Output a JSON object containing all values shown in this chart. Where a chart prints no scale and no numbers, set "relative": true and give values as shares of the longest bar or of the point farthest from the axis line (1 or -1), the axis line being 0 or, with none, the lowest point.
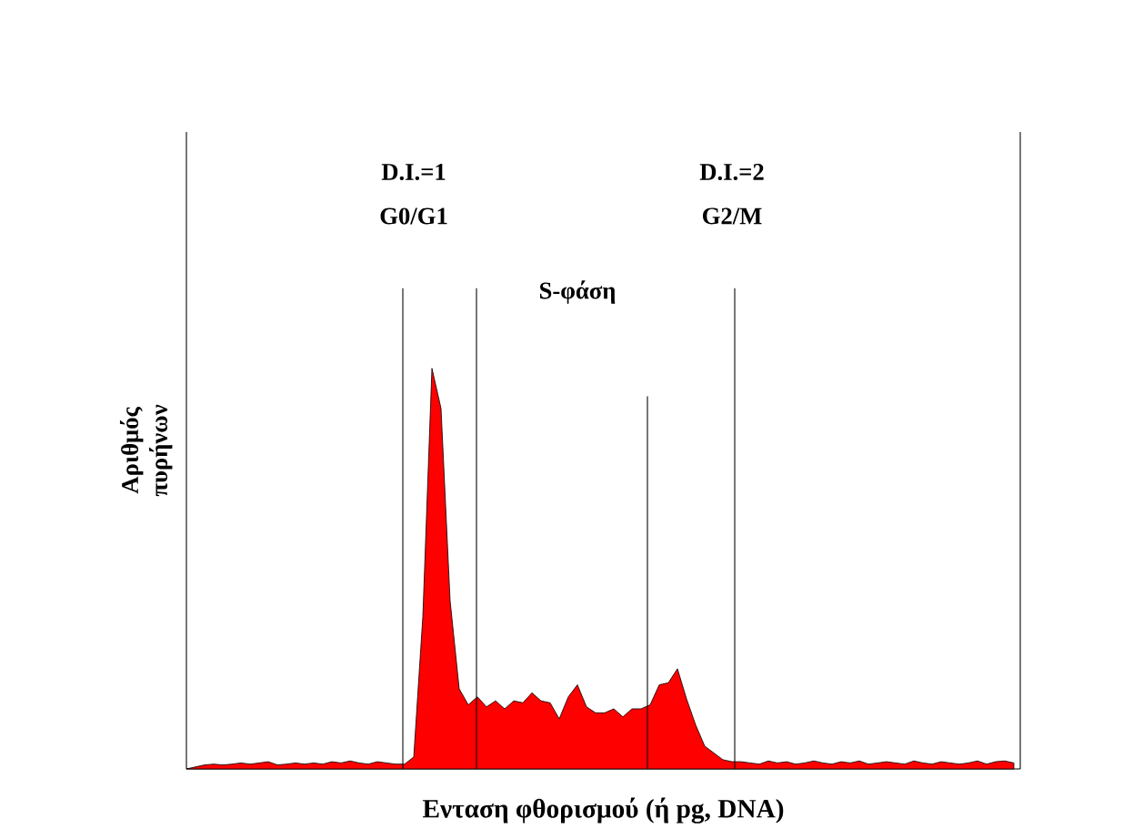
{
  "chart_data": {
    "type": "area",
    "relative": true,
    "xlabel": "Ενταση φθορισμού (ή pg, DNA)",
    "ylabel": "Αριθμός πυρήνων",
    "annotations": [
      "D.I.=1",
      "G0/G1",
      "S-φάση",
      "D.I.=2",
      "G2/M"
    ],
    "categories": [
      null,
      null,
      null,
      null,
      null,
      null,
      null,
      null,
      null,
      null,
      null,
      null,
      null,
      null,
      null,
      null,
      null,
      null,
      null,
      null,
      null,
      null,
      null,
      null,
      null,
      null,
      null,
      null,
      null,
      null,
      null,
      null,
      null,
      null,
      null,
      null,
      null,
      null,
      null,
      null,
      null,
      null,
      null,
      null,
      null,
      null,
      null,
      null,
      null,
      null,
      null,
      null,
      null,
      null,
      null,
      null,
      null,
      null,
      null,
      null,
      null,
      null,
      null,
      null,
      null,
      null,
      null,
      null,
      null,
      null,
      null,
      null,
      null,
      null,
      null,
      null,
      null,
      null,
      null,
      null,
      null,
      null,
      null,
      null,
      null,
      null,
      null,
      null,
      null,
      null,
      null,
      null
    ],
    "series": [
      {
        "color": "#ff0000",
        "values": [
          0.0,
          0.005,
          0.01,
          0.012,
          0.01,
          0.012,
          0.015,
          0.012,
          0.015,
          0.018,
          0.01,
          0.012,
          0.015,
          0.012,
          0.015,
          0.012,
          0.018,
          0.015,
          0.02,
          0.015,
          0.012,
          0.018,
          0.015,
          0.012,
          0.012,
          0.03,
          0.38,
          1.0,
          0.9,
          0.42,
          0.2,
          0.16,
          0.18,
          0.155,
          0.17,
          0.15,
          0.17,
          0.165,
          0.19,
          0.17,
          0.165,
          0.125,
          0.18,
          0.21,
          0.155,
          0.14,
          0.14,
          0.15,
          0.13,
          0.15,
          0.15,
          0.16,
          0.21,
          0.215,
          0.25,
          0.175,
          0.11,
          0.057,
          0.04,
          0.023,
          0.018,
          0.018,
          0.015,
          0.012,
          0.02,
          0.015,
          0.018,
          0.012,
          0.015,
          0.02,
          0.015,
          0.012,
          0.018,
          0.015,
          0.02,
          0.012,
          0.015,
          0.018,
          0.015,
          0.012,
          0.02,
          0.015,
          0.012,
          0.018,
          0.015,
          0.012,
          0.015,
          0.02,
          0.012,
          0.018,
          0.02,
          0.015
        ]
      }
    ]
  }
}
